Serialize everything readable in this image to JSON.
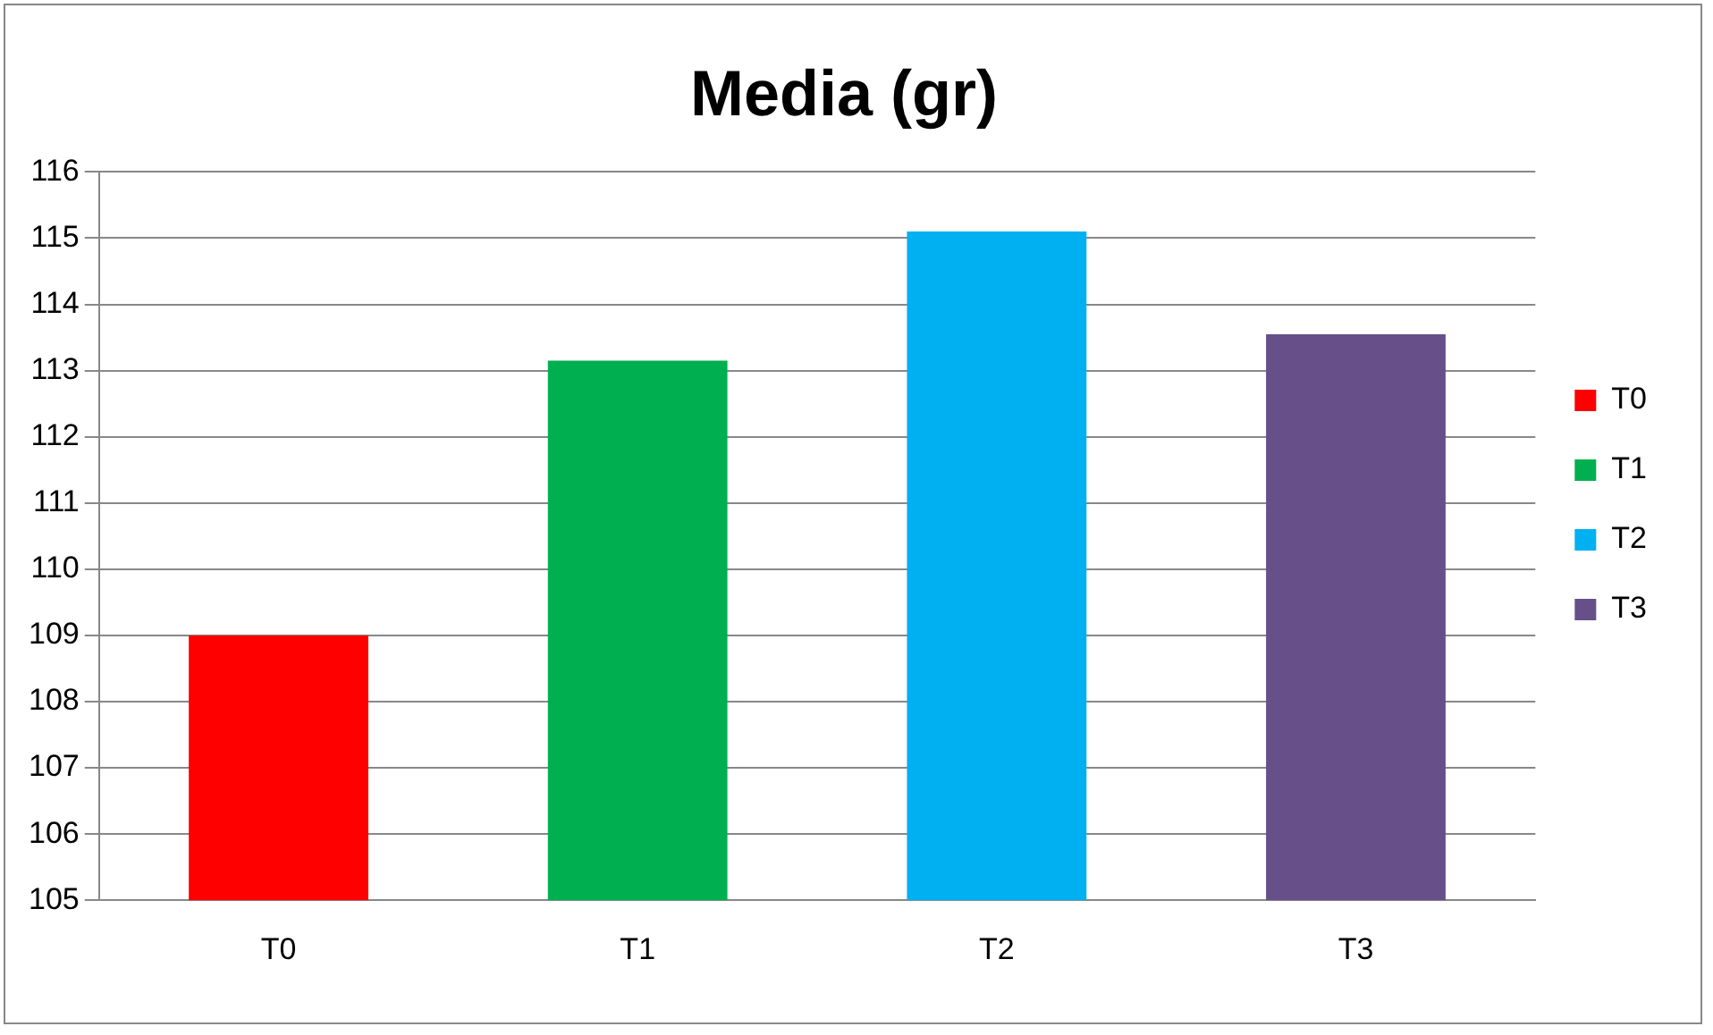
{
  "chart_data": {
    "type": "bar",
    "title": "Media (gr)",
    "categories": [
      "T0",
      "T1",
      "T2",
      "T3"
    ],
    "series": [
      {
        "name": "T0",
        "color": "#ff0000",
        "values": [
          109.0,
          null,
          null,
          null
        ]
      },
      {
        "name": "T1",
        "color": "#00b050",
        "values": [
          null,
          113.15,
          null,
          null
        ]
      },
      {
        "name": "T2",
        "color": "#00b0f0",
        "values": [
          null,
          null,
          115.1,
          null
        ]
      },
      {
        "name": "T3",
        "color": "#674f8a",
        "values": [
          null,
          null,
          null,
          113.55
        ]
      }
    ],
    "ylim": [
      105,
      116
    ],
    "yticks": [
      105,
      106,
      107,
      108,
      109,
      110,
      111,
      112,
      113,
      114,
      115,
      116
    ],
    "grid": "y",
    "legend": "right"
  }
}
